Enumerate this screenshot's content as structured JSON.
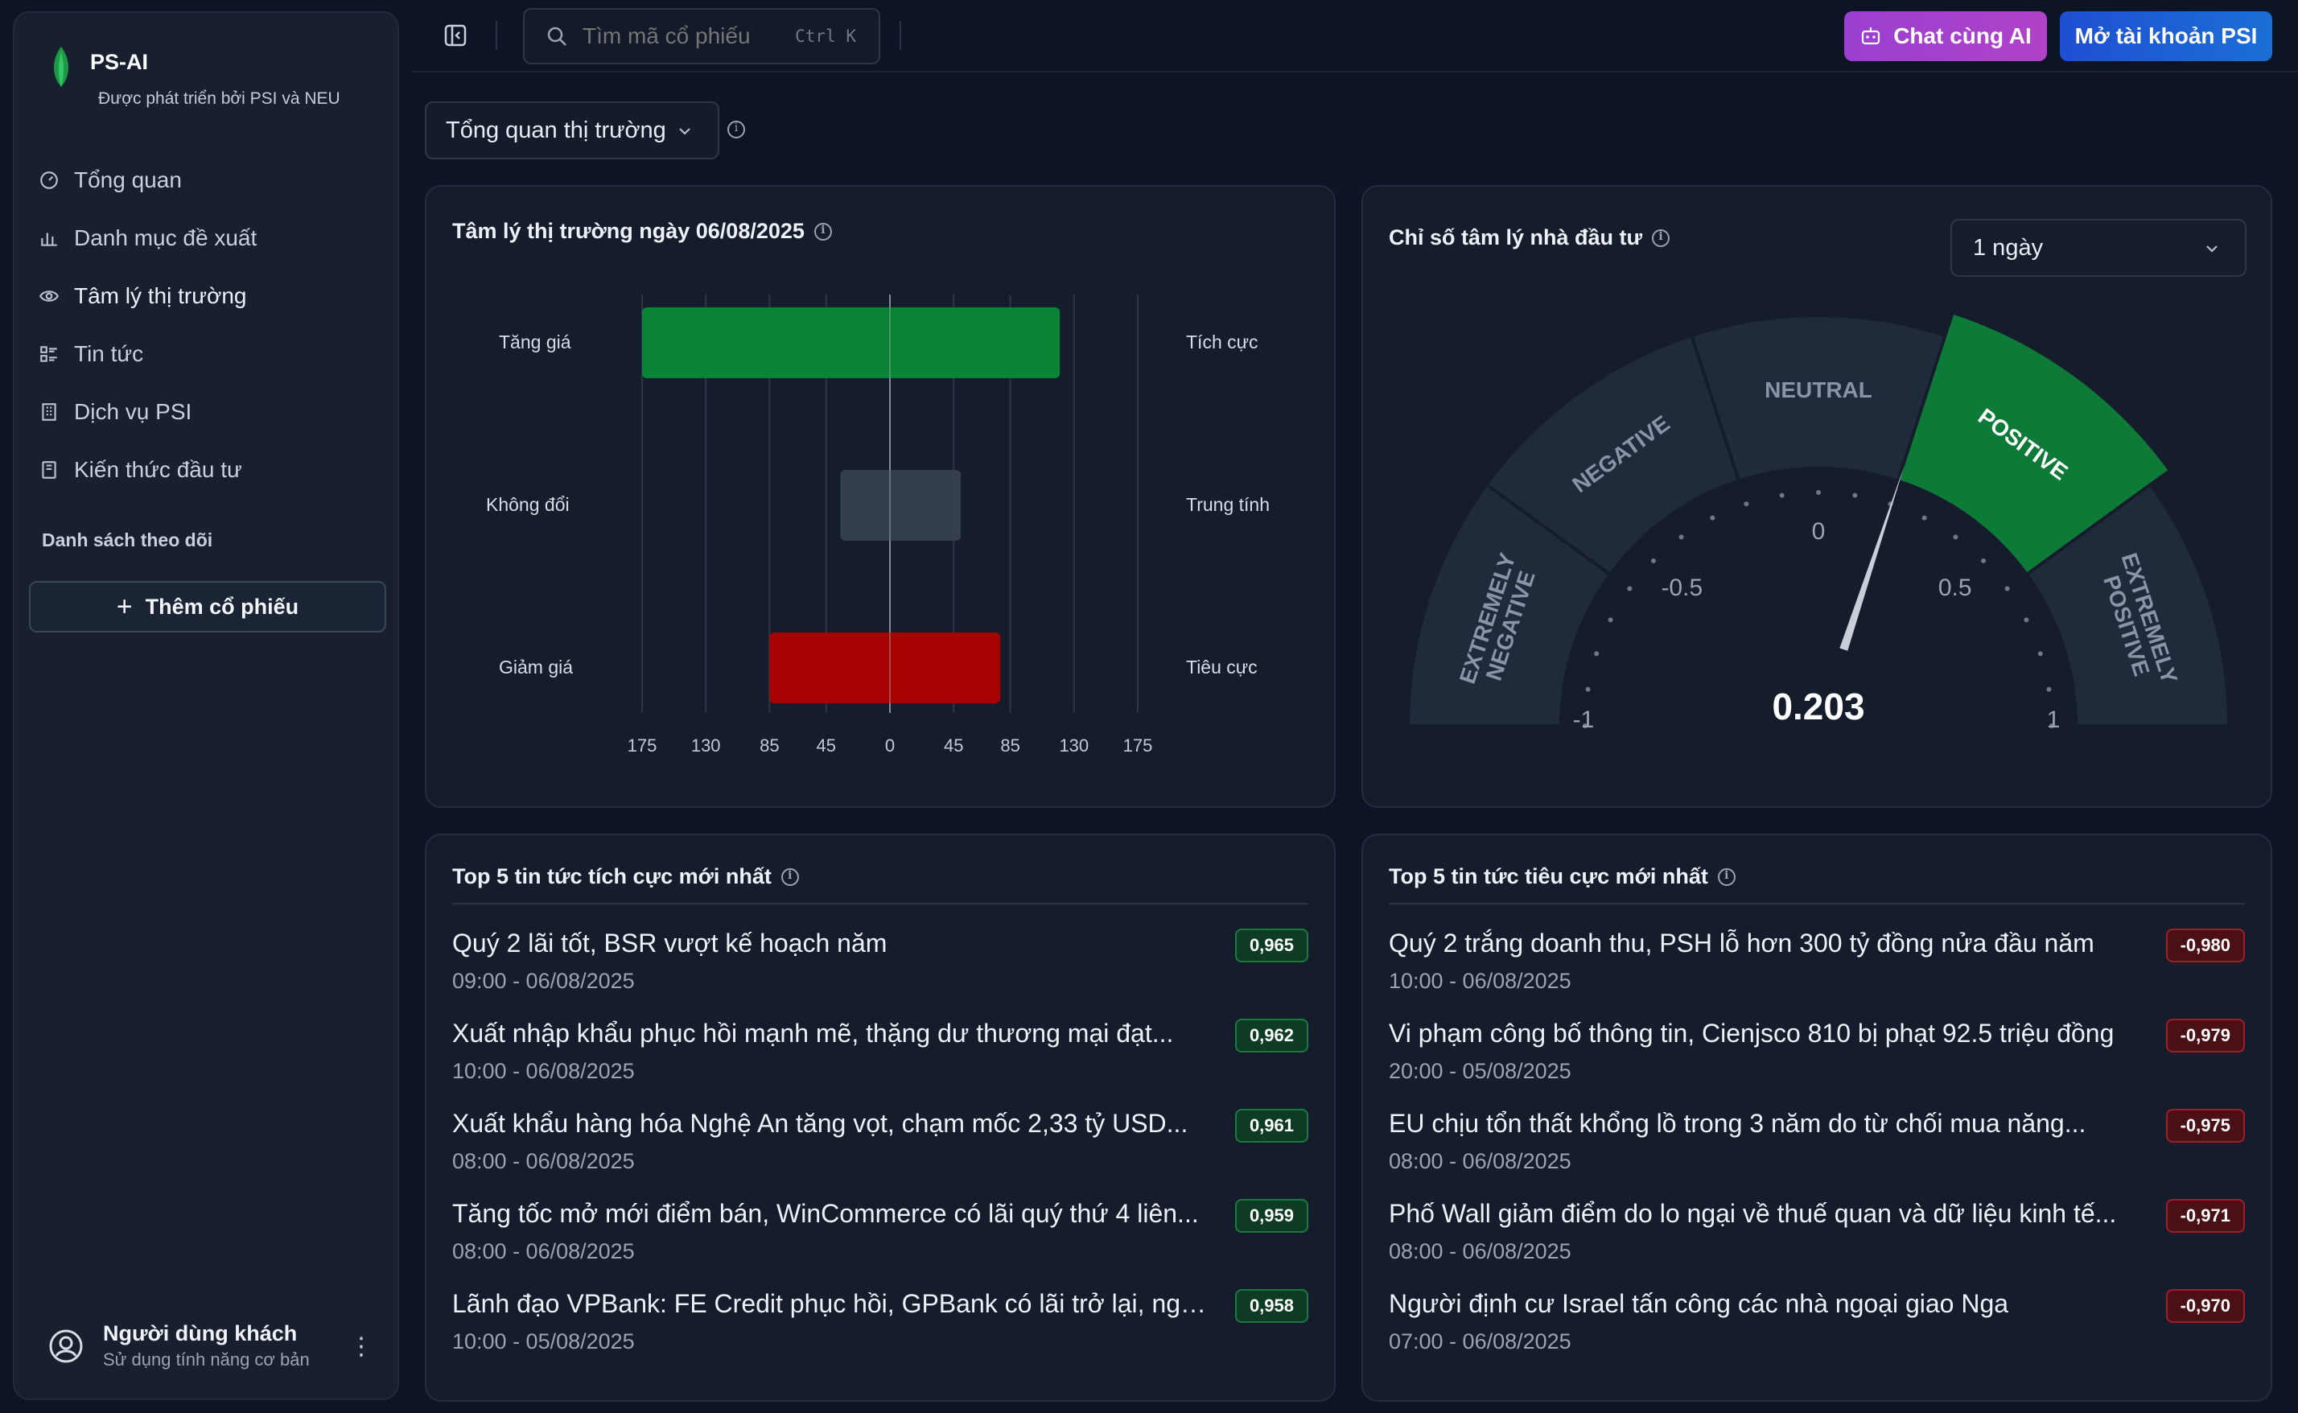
{
  "brand": {
    "name": "PS-AI",
    "subtitle": "Được phát triển bởi PSI và NEU"
  },
  "sidebar": {
    "items": [
      {
        "label": "Tổng quan",
        "icon": "gauge-icon"
      },
      {
        "label": "Danh mục đề xuất",
        "icon": "bar-chart-icon"
      },
      {
        "label": "Tâm lý thị trường",
        "icon": "eye-icon"
      },
      {
        "label": "Tin tức",
        "icon": "list-icon"
      },
      {
        "label": "Dịch vụ PSI",
        "icon": "building-icon"
      },
      {
        "label": "Kiến thức đầu tư",
        "icon": "book-icon"
      }
    ],
    "active_index": 2,
    "watchlist_title": "Danh sách theo dõi",
    "add_stock_label": "Thêm cổ phiếu"
  },
  "user": {
    "name": "Người dùng khách",
    "subtitle": "Sử dụng tính năng cơ bản"
  },
  "topbar": {
    "search_placeholder": "Tìm mã cổ phiếu",
    "search_shortcut": "Ctrl K",
    "chat_label": "Chat cùng AI",
    "account_label": "Mở tài khoản PSI"
  },
  "view_select": {
    "selected": "Tổng quan thị trường"
  },
  "sentiment_card": {
    "title": "Tâm lý thị trường ngày 06/08/2025",
    "chart_data": {
      "type": "bar",
      "orientation": "horizontal-diverging",
      "categories": [
        "Tăng giá",
        "Không đổi",
        "Giảm giá"
      ],
      "right_labels": [
        "Tích cực",
        "Trung tính",
        "Tiêu cực"
      ],
      "bars": [
        {
          "from": -175,
          "to": 120,
          "color": "#0a8a35"
        },
        {
          "from": -35,
          "to": 50,
          "color": "#37404f"
        },
        {
          "from": -85,
          "to": 78,
          "color": "#b00000"
        }
      ],
      "xticks": [
        "175",
        "130",
        "85",
        "45",
        "0",
        "45",
        "85",
        "130",
        "175"
      ],
      "xlim": [
        -175,
        175
      ],
      "grid": true
    }
  },
  "gauge_card": {
    "title": "Chỉ số tâm lý nhà đầu tư",
    "period": "1 ngày",
    "chart_data": {
      "type": "gauge",
      "value": 0.203,
      "value_label": "0.203",
      "range": [
        -1,
        1
      ],
      "ticks": [
        "-1",
        "-0.5",
        "0",
        "0.5",
        "1"
      ],
      "zones": [
        "EXTREMELY NEGATIVE",
        "NEGATIVE",
        "NEUTRAL",
        "POSITIVE",
        "EXTREMELY POSITIVE"
      ],
      "active_zone": "POSITIVE",
      "active_color": "#0e7a37"
    }
  },
  "positive_news": {
    "title": "Top 5 tin tức tích cực mới nhất",
    "items": [
      {
        "title": "Quý 2 lãi tốt, BSR vượt kế hoạch năm",
        "time": "09:00 - 06/08/2025",
        "score": "0,965"
      },
      {
        "title": "Xuất nhập khẩu phục hồi mạnh mẽ, thặng dư thương mại đạt...",
        "time": "10:00 - 06/08/2025",
        "score": "0,962"
      },
      {
        "title": "Xuất khẩu hàng hóa Nghệ An tăng vọt, chạm mốc 2,33 tỷ USD...",
        "time": "08:00 - 06/08/2025",
        "score": "0,961"
      },
      {
        "title": "Tăng tốc mở mới điểm bán, WinCommerce có lãi quý thứ 4 liên...",
        "time": "08:00 - 06/08/2025",
        "score": "0,959"
      },
      {
        "title": "Lãnh đạo VPBank: FE Credit phục hồi, GPBank có lãi trở lại, ngân...",
        "time": "10:00 - 05/08/2025",
        "score": "0,958"
      }
    ]
  },
  "negative_news": {
    "title": "Top 5 tin tức tiêu cực mới nhất",
    "items": [
      {
        "title": "Quý 2 trắng doanh thu, PSH lỗ hơn 300 tỷ đồng nửa đầu năm",
        "time": "10:00 - 06/08/2025",
        "score": "-0,980"
      },
      {
        "title": "Vi phạm công bố thông tin, Cienjsco 810 bị phạt 92.5 triệu đồng",
        "time": "20:00 - 05/08/2025",
        "score": "-0,979"
      },
      {
        "title": "EU chịu tổn thất khổng lồ trong 3 năm do từ chối mua năng...",
        "time": "08:00 - 06/08/2025",
        "score": "-0,975"
      },
      {
        "title": "Phố Wall giảm điểm do lo ngại về thuế quan và dữ liệu kinh tế...",
        "time": "08:00 - 06/08/2025",
        "score": "-0,971"
      },
      {
        "title": "Người định cư Israel tấn công các nhà ngoại giao Nga",
        "time": "07:00 - 06/08/2025",
        "score": "-0,970"
      }
    ]
  }
}
